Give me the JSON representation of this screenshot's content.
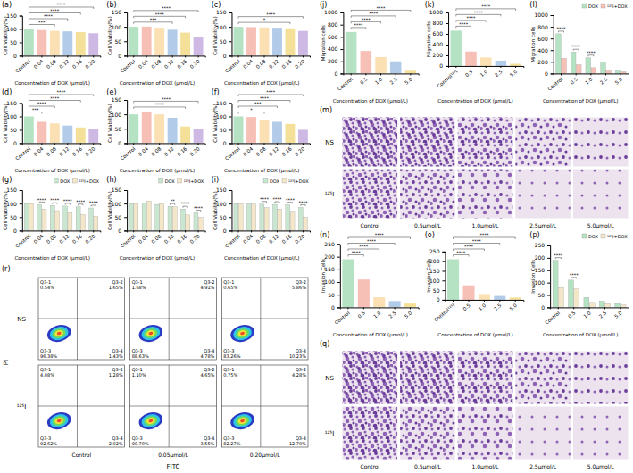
{
  "chart_data": [
    {
      "type": "bar",
      "panel": "(a)",
      "y_label": "Cell Viability(%)",
      "x_label": "Concentration of DOX (μmol/L)",
      "categories": [
        "Control",
        "0.04",
        "0.08",
        "0.12",
        "0.16",
        "0.20"
      ],
      "values": [
        100,
        96,
        93,
        91,
        88,
        84
      ],
      "colors": [
        "#b5e2c3",
        "#f7c0b6",
        "#fbe0b4",
        "#b1cbe9",
        "#f5e09a",
        "#cdb9e4"
      ],
      "ylim": [
        0,
        150
      ],
      "yticks": [
        0,
        50,
        100,
        150
      ],
      "significance": [
        {
          "pair": [
            "Control",
            "0.08"
          ],
          "label": "***"
        },
        {
          "pair": [
            "Control",
            "0.12"
          ],
          "label": "****"
        },
        {
          "pair": [
            "Control",
            "0.16"
          ],
          "label": "****"
        },
        {
          "pair": [
            "Control",
            "0.20"
          ],
          "label": "****"
        }
      ]
    },
    {
      "type": "bar",
      "panel": "(b)",
      "y_label": "Cell Viability(%)",
      "x_label": "Concentration of DOX (μmol/L)",
      "categories": [
        "Control",
        "0.04",
        "0.08",
        "0.12",
        "0.16",
        "0.20"
      ],
      "values": [
        100,
        101,
        97,
        90,
        80,
        66
      ],
      "colors": [
        "#b5e2c3",
        "#f7c0b6",
        "#fbe0b4",
        "#b1cbe9",
        "#f5e09a",
        "#cdb9e4"
      ],
      "ylim": [
        0,
        150
      ],
      "yticks": [
        0,
        50,
        100,
        150
      ],
      "significance": [
        {
          "pair": [
            "Control",
            "0.12"
          ],
          "label": "***"
        },
        {
          "pair": [
            "Control",
            "0.16"
          ],
          "label": "****"
        },
        {
          "pair": [
            "Control",
            "0.20"
          ],
          "label": "****"
        }
      ]
    },
    {
      "type": "bar",
      "panel": "(c)",
      "y_label": "Cell Viability(%)",
      "x_label": "Concentration of DOX (μmol/L)",
      "categories": [
        "Control",
        "0.04",
        "0.08",
        "0.12",
        "0.16",
        "0.20"
      ],
      "values": [
        100,
        99,
        98,
        97,
        95,
        86
      ],
      "colors": [
        "#b5e2c3",
        "#f7c0b6",
        "#fbe0b4",
        "#b1cbe9",
        "#f5e09a",
        "#cdb9e4"
      ],
      "ylim": [
        0,
        150
      ],
      "yticks": [
        0,
        50,
        100,
        150
      ],
      "significance": [
        {
          "pair": [
            "Control",
            "0.16"
          ],
          "label": "*"
        },
        {
          "pair": [
            "Control",
            "0.20"
          ],
          "label": "****"
        }
      ]
    },
    {
      "type": "bar",
      "panel": "(d)",
      "y_label": "Cell Viability(%)",
      "x_label": "Concentration of DOX (μmol/L)",
      "categories": [
        "Control",
        "0.04",
        "0.08",
        "0.12",
        "0.16",
        "0.20"
      ],
      "values": [
        100,
        80,
        74,
        66,
        59,
        53
      ],
      "colors": [
        "#b5e2c3",
        "#f7c0b6",
        "#fbe0b4",
        "#b1cbe9",
        "#f5e09a",
        "#cdb9e4"
      ],
      "ylim": [
        0,
        150
      ],
      "yticks": [
        0,
        50,
        100,
        150
      ],
      "significance": [
        {
          "pair": [
            "Control",
            "0.04"
          ],
          "label": "***"
        },
        {
          "pair": [
            "Control",
            "0.08"
          ],
          "label": "****"
        },
        {
          "pair": [
            "Control",
            "0.16"
          ],
          "label": "****"
        },
        {
          "pair": [
            "Control",
            "0.20"
          ],
          "label": "****"
        }
      ]
    },
    {
      "type": "bar",
      "panel": "(e)",
      "y_label": "Cell Viability(%)",
      "x_label": "Concentration of DOX (μmol/L)",
      "categories": [
        "Control",
        "0.04",
        "0.08",
        "0.12",
        "0.16",
        "0.20"
      ],
      "values": [
        100,
        110,
        100,
        88,
        58,
        49
      ],
      "colors": [
        "#b5e2c3",
        "#f7c0b6",
        "#fbe0b4",
        "#b1cbe9",
        "#f5e09a",
        "#cdb9e4"
      ],
      "ylim": [
        0,
        150
      ],
      "yticks": [
        0,
        50,
        100,
        150
      ],
      "significance": [
        {
          "pair": [
            "Control",
            "0.16"
          ],
          "label": "****"
        },
        {
          "pair": [
            "Control",
            "0.20"
          ],
          "label": "****"
        }
      ]
    },
    {
      "type": "bar",
      "panel": "(f)",
      "y_label": "Cell Viability(%)",
      "x_label": "Concentration of DOX (μmol/L)",
      "categories": [
        "Control",
        "0.04",
        "0.08",
        "0.12",
        "0.16",
        "0.20"
      ],
      "values": [
        100,
        98,
        85,
        80,
        72,
        50
      ],
      "colors": [
        "#b5e2c3",
        "#f7c0b6",
        "#fbe0b4",
        "#b1cbe9",
        "#f5e09a",
        "#cdb9e4"
      ],
      "ylim": [
        0,
        150
      ],
      "yticks": [
        0,
        50,
        100,
        150
      ],
      "significance": [
        {
          "pair": [
            "Control",
            "0.08"
          ],
          "label": "*"
        },
        {
          "pair": [
            "Control",
            "0.12"
          ],
          "label": "***"
        },
        {
          "pair": [
            "Control",
            "0.16"
          ],
          "label": "****"
        },
        {
          "pair": [
            "Control",
            "0.20"
          ],
          "label": "****"
        }
      ]
    },
    {
      "type": "bar",
      "panel": "(g)",
      "y_label": "Cell Viability(%)",
      "x_label": "Concentration of DOX (μmol/L)",
      "categories": [
        "Control",
        "0.04",
        "0.08",
        "0.12",
        "0.16",
        "0.20"
      ],
      "series": [
        {
          "name": "DOX",
          "color": "#c9e6d0",
          "values": [
            100,
            96,
            93,
            91,
            88,
            84
          ]
        },
        {
          "name": "¹²⁵I+DOX",
          "color": "#f3e6c9",
          "values": [
            100,
            80,
            74,
            66,
            59,
            53
          ]
        }
      ],
      "ylim": [
        0,
        150
      ],
      "yticks": [
        0,
        50,
        100,
        150
      ],
      "legend": "top",
      "significance": [
        {
          "category": "0.04",
          "label": "****"
        },
        {
          "category": "0.08",
          "label": "****"
        },
        {
          "category": "0.12",
          "label": "****"
        },
        {
          "category": "0.16",
          "label": "****"
        },
        {
          "category": "0.20",
          "label": "****"
        }
      ]
    },
    {
      "type": "bar",
      "panel": "(h)",
      "y_label": "Cell Viability(%)",
      "x_label": "Concentration of DOX (μmol/L)",
      "categories": [
        "Control",
        "0.04",
        "0.08",
        "0.12",
        "0.16",
        "0.20"
      ],
      "series": [
        {
          "name": "DOX",
          "color": "#c9e6d0",
          "values": [
            100,
            101,
            97,
            90,
            80,
            66
          ]
        },
        {
          "name": "¹²⁵I+DOX",
          "color": "#f3e6c9",
          "values": [
            100,
            110,
            100,
            88,
            58,
            49
          ]
        }
      ],
      "ylim": [
        0,
        150
      ],
      "yticks": [
        0,
        50,
        100,
        150
      ],
      "legend": "top",
      "significance": [
        {
          "category": "0.12",
          "label": "**"
        },
        {
          "category": "0.16",
          "label": "****"
        },
        {
          "category": "0.20",
          "label": "****"
        }
      ]
    },
    {
      "type": "bar",
      "panel": "(i)",
      "y_label": "Cell Viability(%)",
      "x_label": "Concentration of DOX (μmol/L)",
      "categories": [
        "Control",
        "0.04",
        "0.08",
        "0.12",
        "0.16",
        "0.20"
      ],
      "series": [
        {
          "name": "DOX",
          "color": "#c9e6d0",
          "values": [
            100,
            99,
            98,
            97,
            95,
            86
          ]
        },
        {
          "name": "¹²⁵I+DOX",
          "color": "#f3e6c9",
          "values": [
            100,
            98,
            85,
            80,
            72,
            50
          ]
        }
      ],
      "ylim": [
        0,
        150
      ],
      "yticks": [
        0,
        50,
        100,
        150
      ],
      "legend": "top",
      "significance": [
        {
          "category": "0.08",
          "label": "****"
        },
        {
          "category": "0.12",
          "label": "****"
        },
        {
          "category": "0.16",
          "label": "****"
        },
        {
          "category": "0.20",
          "label": "****"
        }
      ]
    },
    {
      "type": "flow_cytometry",
      "panel": "(r)",
      "x_label": "FITC",
      "y_label": "PI",
      "rows": [
        "NS",
        "¹²⁵I"
      ],
      "columns": [
        "Control",
        "0.05μmol/L",
        "0.20μmol/L"
      ],
      "tick_labels": false,
      "quadrants": [
        "Q3-1",
        "Q3-2",
        "Q3-3",
        "Q3-4"
      ],
      "panels": [
        {
          "values": [
            0.54,
            1.65,
            96.38,
            1.43
          ],
          "value_labels": [
            "0.54%",
            "1.65%",
            "96.38%",
            "1.43%"
          ]
        },
        {
          "values": [
            1.68,
            4.91,
            88.63,
            4.78
          ],
          "value_labels": [
            "1.68%",
            "4.91%",
            "88.63%",
            "4.78%"
          ]
        },
        {
          "values": [
            0.65,
            5.86,
            83.26,
            10.23
          ],
          "value_labels": [
            "0.65%",
            "5.86%",
            "83.26%",
            "10.23%"
          ]
        },
        {
          "values": [
            4.08,
            1.28,
            92.62,
            2.02
          ],
          "value_labels": [
            "4.08%",
            "1.28%",
            "92.62%",
            "2.02%"
          ]
        },
        {
          "values": [
            1.1,
            4.65,
            90.7,
            3.55
          ],
          "value_labels": [
            "1.10%",
            "4.65%",
            "90.70%",
            "3.55%"
          ]
        },
        {
          "values": [
            0.75,
            4.28,
            82.27,
            12.7
          ],
          "value_labels": [
            "0.75%",
            "4.28%",
            "82.27%",
            "12.70%"
          ]
        }
      ]
    },
    {
      "type": "bar",
      "panel": "(j)",
      "y_label": "Migration cells",
      "x_label": "Concentration of DOX (μmol/L)",
      "categories": [
        "Control",
        "0.5",
        "1.0",
        "2.5",
        "5.0"
      ],
      "values": [
        680,
        370,
        270,
        200,
        60
      ],
      "colors": [
        "#b5e2c3",
        "#f7c0b6",
        "#fbe0b4",
        "#b1cbe9",
        "#f5e09a"
      ],
      "ylim": [
        0,
        1000
      ],
      "yticks": [
        0,
        200,
        400,
        600,
        800,
        1000
      ],
      "significance": [
        {
          "pair": [
            "Control",
            "0.5"
          ],
          "label": "****"
        },
        {
          "pair": [
            "Control",
            "1.0"
          ],
          "label": "****"
        },
        {
          "pair": [
            "Control",
            "2.5"
          ],
          "label": "****"
        },
        {
          "pair": [
            "Control",
            "5.0"
          ],
          "label": "****"
        }
      ]
    },
    {
      "type": "bar",
      "panel": "(k)",
      "y_label": "Migration cells",
      "x_label": "Concentration of DOX (μmol/L)",
      "categories": [
        "Control¹²⁵I",
        "0.5",
        "1.0",
        "2.5",
        "5.0"
      ],
      "values": [
        660,
        270,
        160,
        100,
        40
      ],
      "colors": [
        "#b5e2c3",
        "#f7c0b6",
        "#fbe0b4",
        "#b1cbe9",
        "#f5e09a"
      ],
      "ylim": [
        0,
        1000
      ],
      "yticks": [
        0,
        200,
        400,
        600,
        800,
        1000
      ],
      "significance": [
        {
          "pair": [
            "Control¹²⁵I",
            "0.5"
          ],
          "label": "****"
        },
        {
          "pair": [
            "Control¹²⁵I",
            "1.0"
          ],
          "label": "****"
        },
        {
          "pair": [
            "Control¹²⁵I",
            "2.5"
          ],
          "label": "****"
        },
        {
          "pair": [
            "Control¹²⁵I",
            "5.0"
          ],
          "label": "****"
        }
      ]
    },
    {
      "type": "bar",
      "panel": "(l)",
      "y_label": "Migration cells",
      "x_label": "Concentration of DOX (μmol/L)",
      "categories": [
        "Control",
        "0.5",
        "1.0",
        "2.5",
        "5.0"
      ],
      "series": [
        {
          "name": "DOX",
          "color": "#b5e2c3",
          "values": [
            680,
            370,
            270,
            200,
            60
          ]
        },
        {
          "name": "¹²⁵I+DOX",
          "color": "#f7c0b6",
          "values": [
            260,
            150,
            100,
            60,
            30
          ]
        }
      ],
      "ylim": [
        0,
        1000
      ],
      "yticks": [
        0,
        200,
        400,
        600,
        800,
        1000
      ],
      "legend": "top",
      "significance": [
        {
          "category": "Control",
          "label": "****"
        },
        {
          "category": "0.5",
          "label": "****"
        },
        {
          "category": "1.0",
          "label": "****"
        }
      ]
    },
    {
      "type": "image_grid",
      "panel": "(m)",
      "rows": [
        "NS",
        "¹²⁵I"
      ],
      "columns": [
        "Control",
        "0.5μmol/L",
        "1.0μmol/L",
        "2.5μmol/L",
        "5.0μmol/L"
      ]
    },
    {
      "type": "bar",
      "panel": "(n)",
      "y_label": "Invasion Cells",
      "x_label": "Concentration of DOX (μmol/L)",
      "categories": [
        "Control",
        "0.5",
        "1.0",
        "2.5",
        "5.0"
      ],
      "values": [
        190,
        110,
        40,
        25,
        15
      ],
      "colors": [
        "#b5e2c3",
        "#f7c0b6",
        "#fbe0b4",
        "#b1cbe9",
        "#f5e09a"
      ],
      "ylim": [
        0,
        250
      ],
      "yticks": [
        0,
        50,
        100,
        150,
        200,
        250
      ],
      "significance": [
        {
          "pair": [
            "Control",
            "0.5"
          ],
          "label": "****"
        },
        {
          "pair": [
            "Control",
            "1.0"
          ],
          "label": "****"
        },
        {
          "pair": [
            "Control",
            "2.5"
          ],
          "label": "****"
        },
        {
          "pair": [
            "Control",
            "5.0"
          ],
          "label": "****"
        }
      ]
    },
    {
      "type": "bar",
      "panel": "(o)",
      "y_label": "Invasion Cells",
      "x_label": "Concentration of DOX (μmol/L)",
      "categories": [
        "Control¹²⁵I",
        "0.5",
        "1.0",
        "2.5",
        "5.0"
      ],
      "values": [
        210,
        75,
        30,
        20,
        12
      ],
      "colors": [
        "#b5e2c3",
        "#f7c0b6",
        "#fbe0b4",
        "#b1cbe9",
        "#f5e09a"
      ],
      "ylim": [
        0,
        250
      ],
      "yticks": [
        0,
        50,
        100,
        150,
        200,
        250
      ],
      "significance": [
        {
          "pair": [
            "Control¹²⁵I",
            "0.5"
          ],
          "label": "****"
        },
        {
          "pair": [
            "Control¹²⁵I",
            "1.0"
          ],
          "label": "****"
        },
        {
          "pair": [
            "Control¹²⁵I",
            "2.5"
          ],
          "label": "****"
        },
        {
          "pair": [
            "Control¹²⁵I",
            "5.0"
          ],
          "label": "****"
        }
      ]
    },
    {
      "type": "bar",
      "panel": "(p)",
      "y_label": "Invasion Cells",
      "x_label": "Concentration of DOX (μmol/L)",
      "categories": [
        "Control",
        "0.5",
        "1.0",
        "2.5",
        "5.0"
      ],
      "series": [
        {
          "name": "DOX",
          "color": "#b5e2c3",
          "values": [
            190,
            110,
            40,
            25,
            15
          ]
        },
        {
          "name": "¹²⁵I+DOX",
          "color": "#f3e6c9",
          "values": [
            80,
            75,
            20,
            15,
            10
          ]
        }
      ],
      "ylim": [
        0,
        250
      ],
      "yticks": [
        0,
        50,
        100,
        150,
        200,
        250
      ],
      "legend": "top",
      "significance": [
        {
          "category": "Control",
          "label": "****"
        },
        {
          "category": "0.5",
          "label": "****"
        }
      ]
    },
    {
      "type": "image_grid",
      "panel": "(q)",
      "rows": [
        "NS",
        "¹²⁵I"
      ],
      "columns": [
        "Control",
        "0.5μmol/L",
        "1.0μmol/L",
        "2.5μmol/L",
        "5.0μmol/L"
      ]
    }
  ]
}
